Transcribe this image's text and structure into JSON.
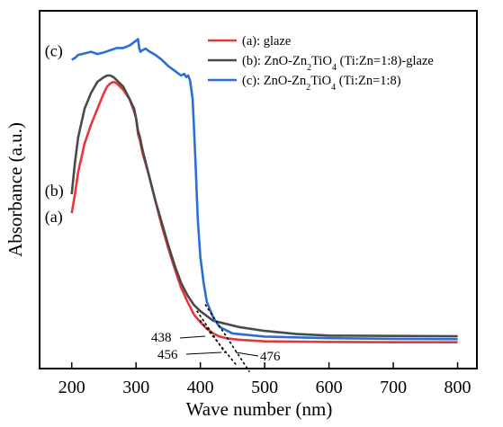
{
  "chart_data": {
    "type": "line",
    "title": "",
    "xlabel": "Wave number (nm)",
    "ylabel": "Absorbance (a.u.)",
    "xlim": [
      150,
      830
    ],
    "ylim": [
      0,
      1
    ],
    "xticks": [
      200,
      300,
      400,
      500,
      600,
      700,
      800
    ],
    "xtick_labels": [
      "200",
      "300",
      "400",
      "500",
      "600",
      "700",
      "800"
    ],
    "y_ticks_labeled": false,
    "grid": false,
    "legend_placement": "top-right",
    "series": [
      {
        "name": "(a): glaze",
        "tag": "(a)",
        "color": "#e8363c",
        "points": [
          [
            200,
            0.44
          ],
          [
            205,
            0.5
          ],
          [
            210,
            0.57
          ],
          [
            220,
            0.66
          ],
          [
            230,
            0.72
          ],
          [
            240,
            0.77
          ],
          [
            250,
            0.82
          ],
          [
            255,
            0.84
          ],
          [
            260,
            0.85
          ],
          [
            265,
            0.855
          ],
          [
            270,
            0.85
          ],
          [
            280,
            0.83
          ],
          [
            290,
            0.8
          ],
          [
            297,
            0.76
          ],
          [
            300,
            0.74
          ],
          [
            303,
            0.69
          ],
          [
            306,
            0.67
          ],
          [
            310,
            0.63
          ],
          [
            320,
            0.56
          ],
          [
            330,
            0.48
          ],
          [
            340,
            0.4
          ],
          [
            350,
            0.33
          ],
          [
            360,
            0.265
          ],
          [
            370,
            0.205
          ],
          [
            380,
            0.16
          ],
          [
            390,
            0.12
          ],
          [
            400,
            0.095
          ],
          [
            410,
            0.075
          ],
          [
            420,
            0.06
          ],
          [
            430,
            0.05
          ],
          [
            440,
            0.045
          ],
          [
            460,
            0.04
          ],
          [
            500,
            0.035
          ],
          [
            600,
            0.033
          ],
          [
            700,
            0.032
          ],
          [
            800,
            0.032
          ]
        ]
      },
      {
        "name": "(b): ZnO-Zn2TiO4 (Ti:Zn=1:8)-glaze",
        "tag": "(b)",
        "color": "#4a4a4a",
        "points": [
          [
            200,
            0.5
          ],
          [
            205,
            0.6
          ],
          [
            210,
            0.68
          ],
          [
            220,
            0.77
          ],
          [
            230,
            0.82
          ],
          [
            240,
            0.855
          ],
          [
            250,
            0.87
          ],
          [
            255,
            0.875
          ],
          [
            260,
            0.875
          ],
          [
            265,
            0.87
          ],
          [
            270,
            0.86
          ],
          [
            280,
            0.84
          ],
          [
            290,
            0.8
          ],
          [
            297,
            0.77
          ],
          [
            300,
            0.74
          ],
          [
            303,
            0.7
          ],
          [
            306,
            0.68
          ],
          [
            310,
            0.64
          ],
          [
            320,
            0.56
          ],
          [
            330,
            0.48
          ],
          [
            340,
            0.41
          ],
          [
            350,
            0.34
          ],
          [
            360,
            0.275
          ],
          [
            370,
            0.22
          ],
          [
            380,
            0.18
          ],
          [
            390,
            0.15
          ],
          [
            400,
            0.13
          ],
          [
            410,
            0.115
          ],
          [
            420,
            0.1
          ],
          [
            440,
            0.09
          ],
          [
            460,
            0.08
          ],
          [
            500,
            0.068
          ],
          [
            550,
            0.058
          ],
          [
            600,
            0.053
          ],
          [
            700,
            0.052
          ],
          [
            800,
            0.051
          ]
        ]
      },
      {
        "name": "(c): ZnO-Zn2TiO4 (Ti:Zn=1:8)",
        "tag": "(c)",
        "color": "#2a6fd6",
        "points": [
          [
            200,
            0.925
          ],
          [
            205,
            0.93
          ],
          [
            210,
            0.94
          ],
          [
            220,
            0.945
          ],
          [
            230,
            0.95
          ],
          [
            240,
            0.943
          ],
          [
            250,
            0.948
          ],
          [
            260,
            0.955
          ],
          [
            270,
            0.962
          ],
          [
            280,
            0.962
          ],
          [
            290,
            0.97
          ],
          [
            300,
            0.985
          ],
          [
            303,
            0.99
          ],
          [
            305,
            0.96
          ],
          [
            307,
            0.95
          ],
          [
            310,
            0.955
          ],
          [
            315,
            0.96
          ],
          [
            320,
            0.952
          ],
          [
            330,
            0.94
          ],
          [
            340,
            0.925
          ],
          [
            350,
            0.905
          ],
          [
            360,
            0.89
          ],
          [
            370,
            0.875
          ],
          [
            375,
            0.88
          ],
          [
            378,
            0.87
          ],
          [
            381,
            0.875
          ],
          [
            384,
            0.86
          ],
          [
            388,
            0.8
          ],
          [
            392,
            0.62
          ],
          [
            396,
            0.42
          ],
          [
            400,
            0.3
          ],
          [
            405,
            0.22
          ],
          [
            410,
            0.16
          ],
          [
            420,
            0.11
          ],
          [
            430,
            0.08
          ],
          [
            450,
            0.06
          ],
          [
            500,
            0.05
          ],
          [
            600,
            0.045
          ],
          [
            700,
            0.043
          ],
          [
            800,
            0.042
          ]
        ]
      }
    ],
    "annotations": [
      {
        "label": "438",
        "value": 438
      },
      {
        "label": "456",
        "value": 456
      },
      {
        "label": "476",
        "value": 476
      }
    ]
  }
}
